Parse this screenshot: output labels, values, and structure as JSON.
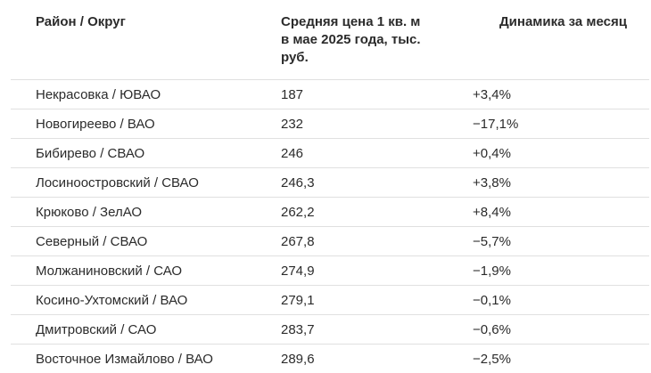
{
  "table": {
    "headers": {
      "district": "Район / Округ",
      "price": "Средняя цена 1 кв. м в мае 2025 года, тыс. руб.",
      "dynamics": "Динамика за месяц"
    },
    "rows": [
      {
        "district": "Некрасовка / ЮВАО",
        "price": "187",
        "dynamics": "+3,4%"
      },
      {
        "district": "Новогиреево / ВАО",
        "price": "232",
        "dynamics": "−17,1%"
      },
      {
        "district": "Бибирево / СВАО",
        "price": "246",
        "dynamics": "+0,4%"
      },
      {
        "district": "Лосиноостровский / СВАО",
        "price": "246,3",
        "dynamics": "+3,8%"
      },
      {
        "district": "Крюково / ЗелАО",
        "price": "262,2",
        "dynamics": "+8,4%"
      },
      {
        "district": "Северный / СВАО",
        "price": "267,8",
        "dynamics": "−5,7%"
      },
      {
        "district": "Молжаниновский / САО",
        "price": "274,9",
        "dynamics": "−1,9%"
      },
      {
        "district": "Косино-Ухтомский / ВАО",
        "price": "279,1",
        "dynamics": "−0,1%"
      },
      {
        "district": "Дмитровский / САО",
        "price": "283,7",
        "dynamics": "−0,6%"
      },
      {
        "district": "Восточное Измайлово / ВАО",
        "price": "289,6",
        "dynamics": "−2,5%"
      }
    ]
  },
  "chart_data": {
    "type": "table",
    "columns": [
      "Район / Округ",
      "Средняя цена 1 кв. м в мае 2025 года, тыс. руб.",
      "Динамика за месяц"
    ],
    "rows": [
      [
        "Некрасовка / ЮВАО",
        187,
        "+3,4%"
      ],
      [
        "Новогиреево / ВАО",
        232,
        "−17,1%"
      ],
      [
        "Бибирево / СВАО",
        246,
        "+0,4%"
      ],
      [
        "Лосиноостровский / СВАО",
        246.3,
        "+3,8%"
      ],
      [
        "Крюково / ЗелАО",
        262.2,
        "+8,4%"
      ],
      [
        "Северный / СВАО",
        267.8,
        "−5,7%"
      ],
      [
        "Молжаниновский / САО",
        274.9,
        "−1,9%"
      ],
      [
        "Косино-Ухтомский / ВАО",
        279.1,
        "−0,1%"
      ],
      [
        "Дмитровский / САО",
        283.7,
        "−0,6%"
      ],
      [
        "Восточное Измайлово / ВАО",
        289.6,
        "−2,5%"
      ]
    ]
  }
}
